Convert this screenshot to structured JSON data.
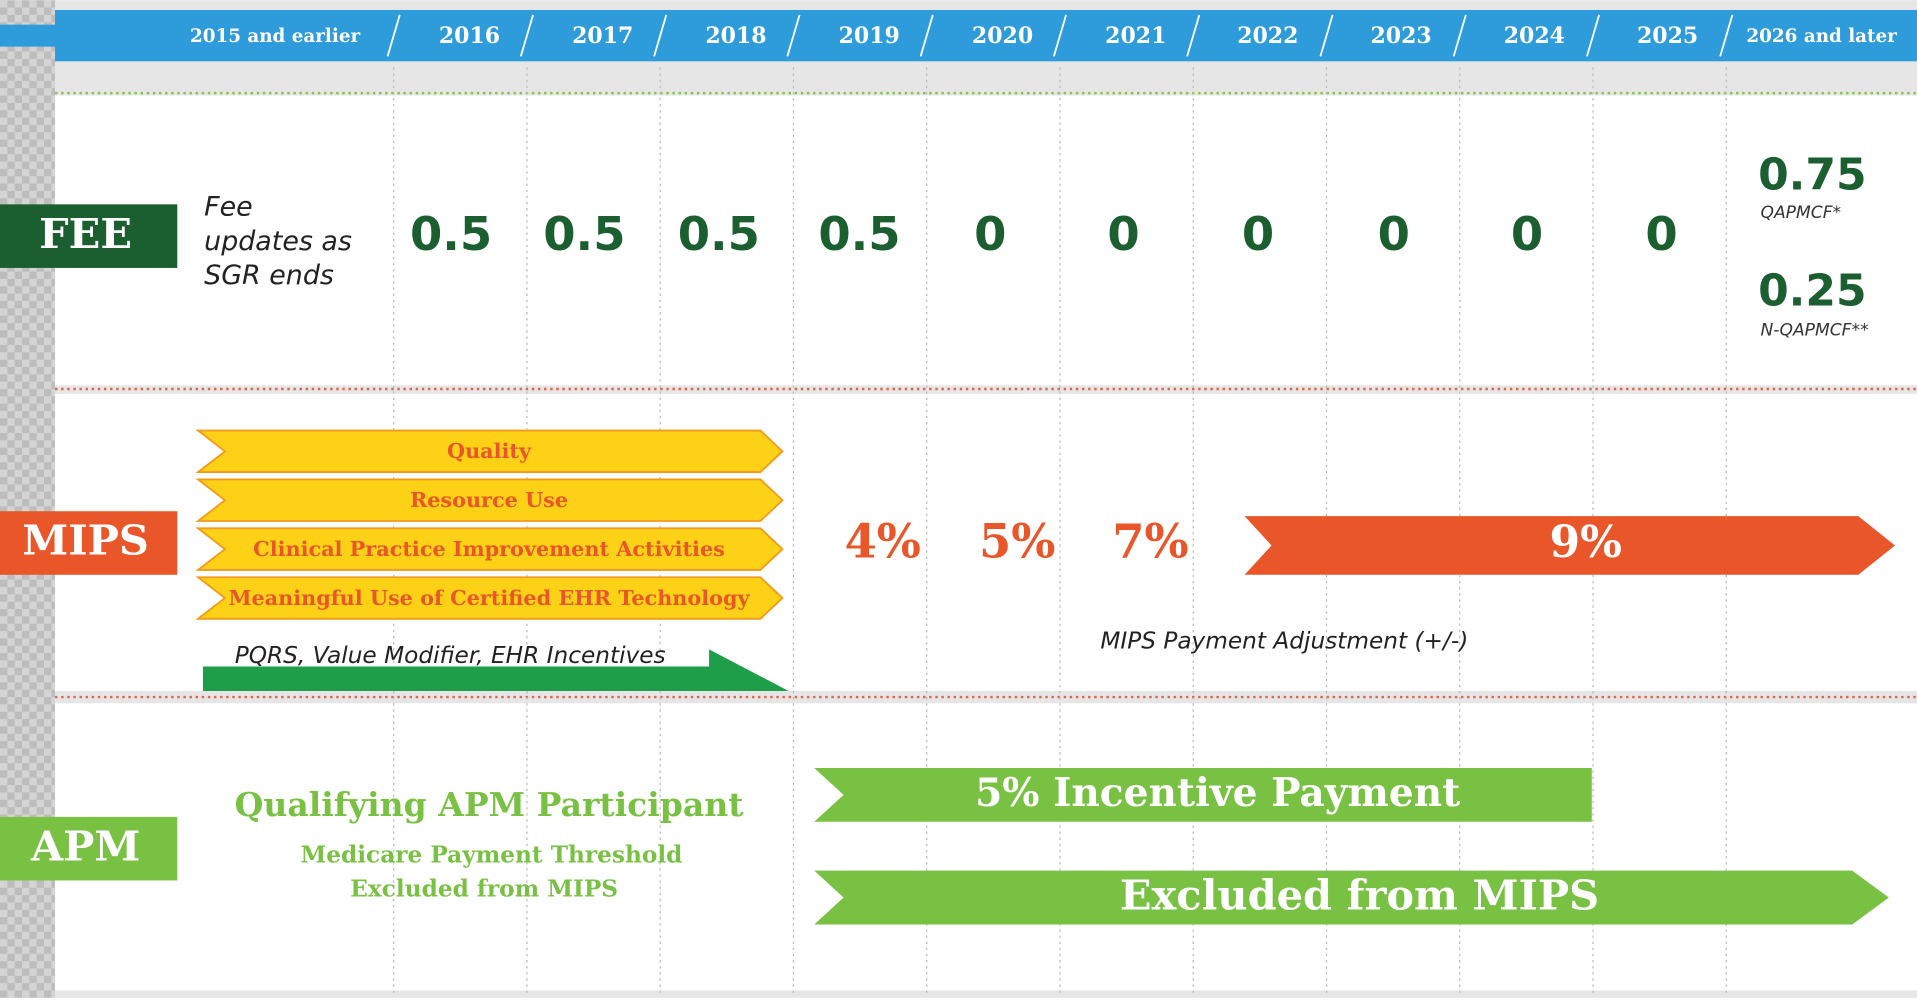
{
  "header": {
    "years": [
      "2015 and earlier",
      "2016",
      "2017",
      "2018",
      "2019",
      "2020",
      "2021",
      "2022",
      "2023",
      "2024",
      "2025",
      "2026 and later"
    ]
  },
  "fee": {
    "label": "FEE",
    "description": [
      "Fee",
      "updates as",
      "SGR ends"
    ],
    "values": [
      0.5,
      0.5,
      0.5,
      0.5,
      0,
      0,
      0,
      0,
      0,
      0
    ],
    "later": [
      {
        "value": 0.75,
        "note": "QAPMCF*"
      },
      {
        "value": 0.25,
        "note": "N-QAPMCF**"
      }
    ]
  },
  "mips": {
    "label": "MIPS",
    "components": [
      "Quality",
      "Resource Use",
      "Clinical Practice Improvement Activities",
      "Meaningful Use of Certified EHR Technology"
    ],
    "legacy": "PQRS, Value Modifier, EHR Incentives",
    "adjustments": [
      "4%",
      "5%",
      "7%"
    ],
    "max_adjustment": "9%",
    "caption": "MIPS Payment Adjustment (+/-)"
  },
  "apm": {
    "label": "APM",
    "title": "Qualifying APM Participant",
    "subtitle": [
      "Medicare Payment Threshold",
      "Excluded from MIPS"
    ],
    "incentive": "5% Incentive Payment",
    "exclusion": "Excluded from MIPS"
  }
}
